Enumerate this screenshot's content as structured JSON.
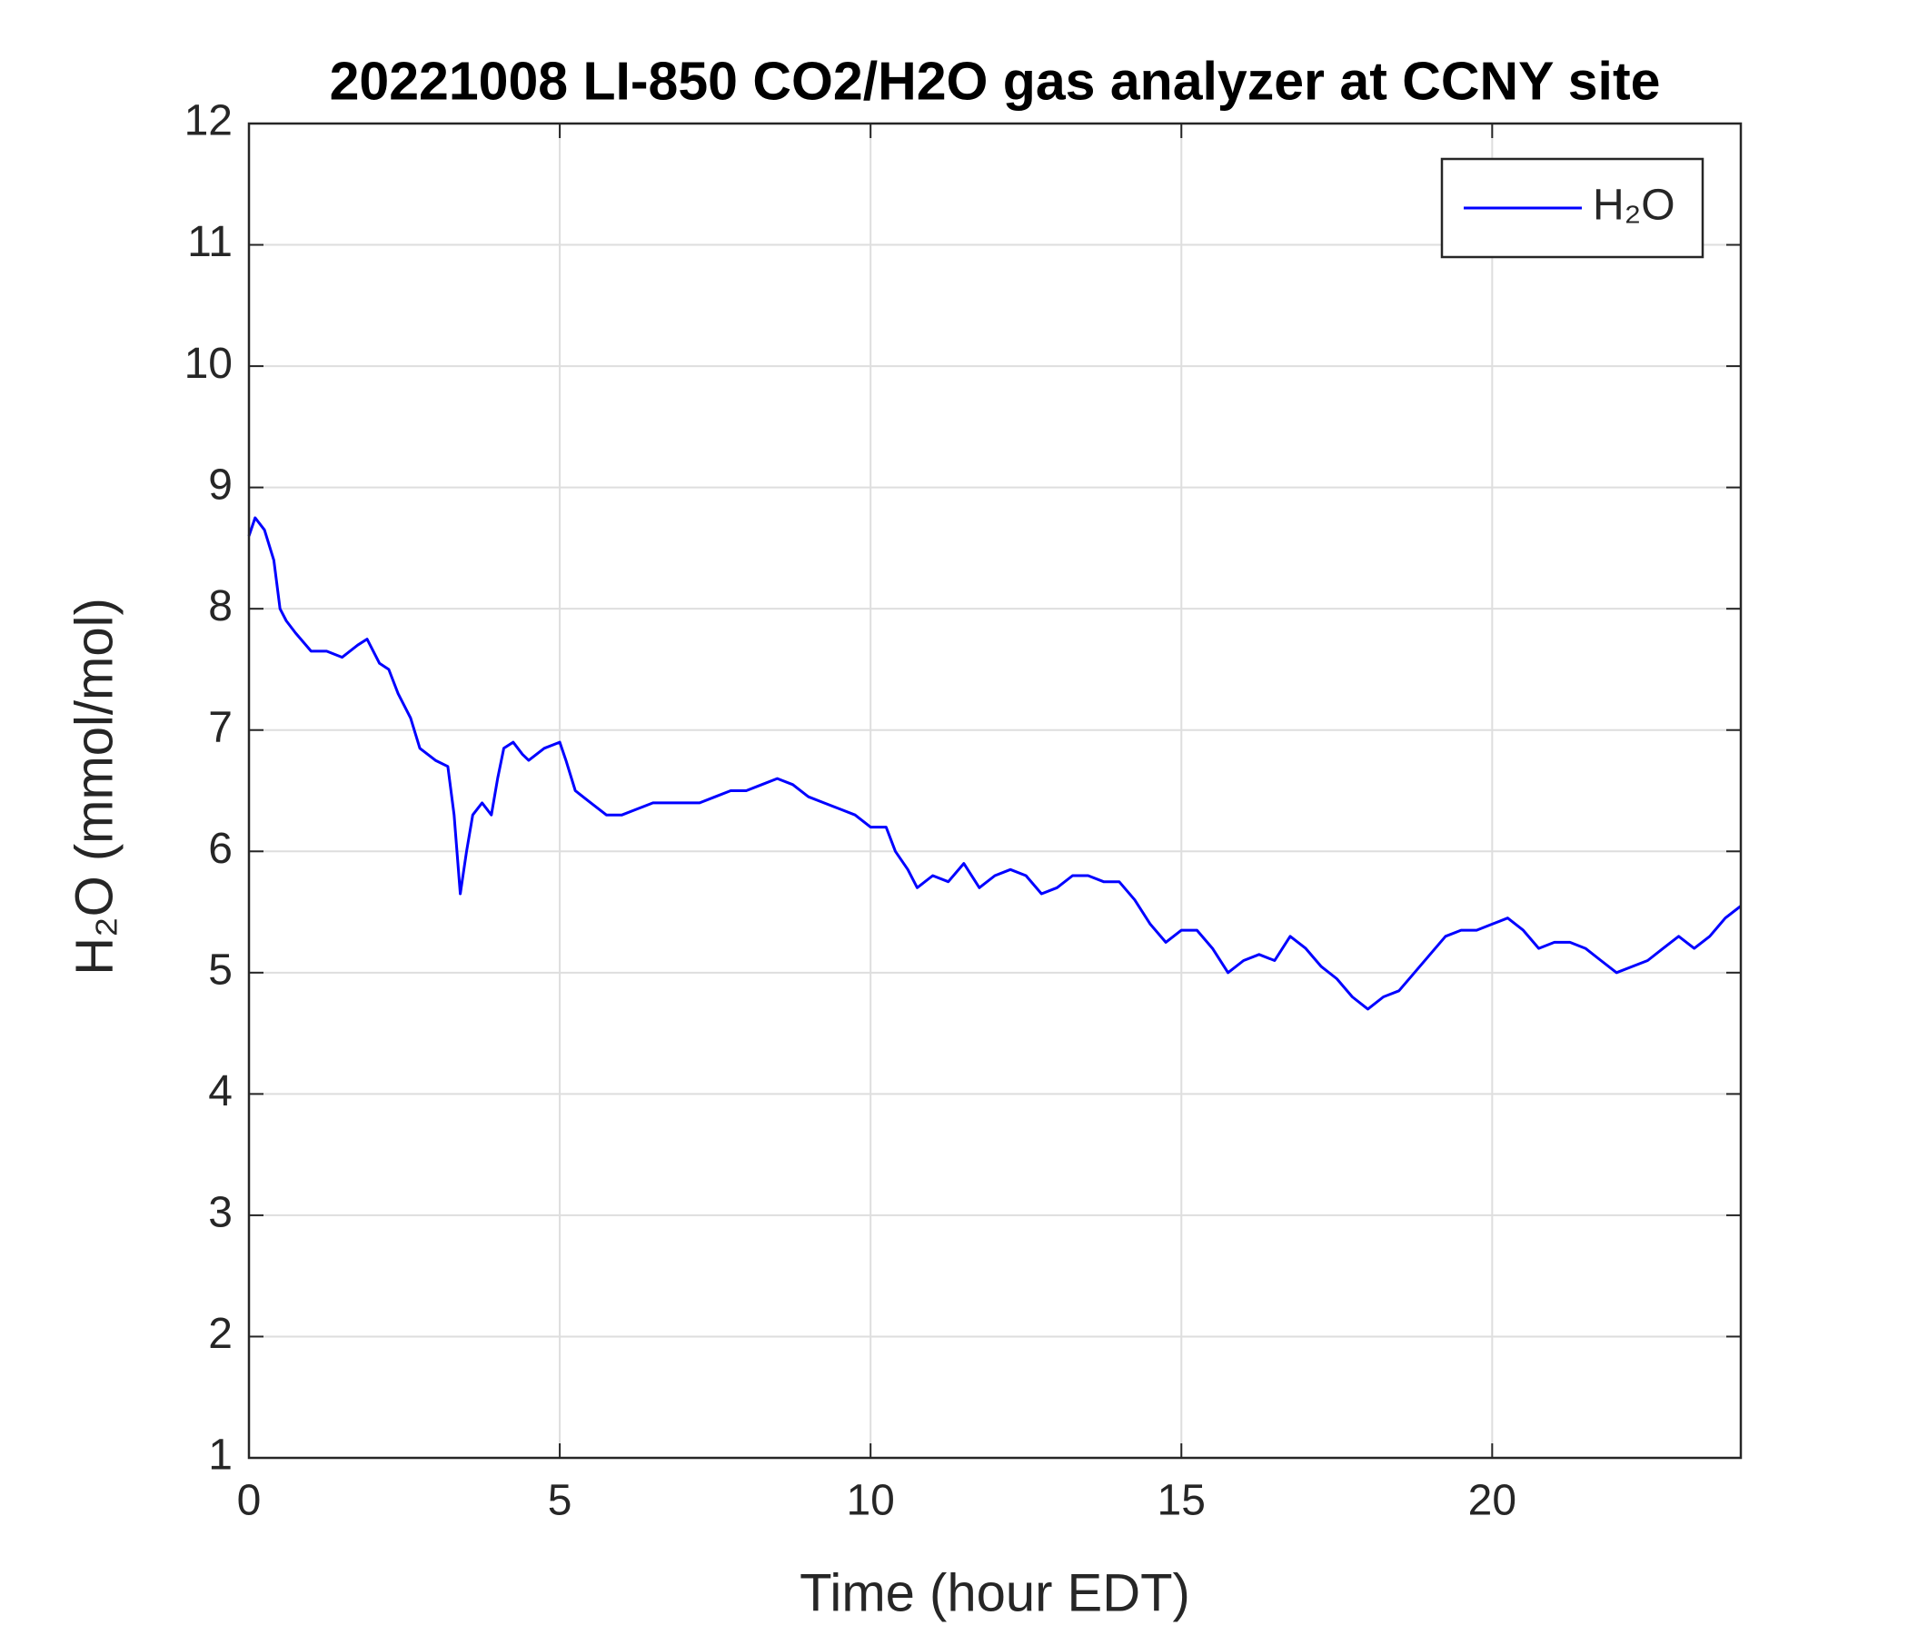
{
  "chart_data": {
    "type": "line",
    "title": "20221008 LI-850 CO2/H2O gas analyzer at CCNY site",
    "xlabel": "Time (hour EDT)",
    "ylabel": "H₂O (mmol/mol)",
    "x": [
      0,
      0.1,
      0.25,
      0.4,
      0.5,
      0.6,
      0.75,
      1,
      1.25,
      1.5,
      1.75,
      1.9,
      2.1,
      2.25,
      2.4,
      2.6,
      2.75,
      3,
      3.2,
      3.3,
      3.4,
      3.5,
      3.6,
      3.75,
      3.9,
      4,
      4.1,
      4.25,
      4.4,
      4.5,
      4.75,
      5,
      5.1,
      5.25,
      5.5,
      5.75,
      6,
      6.25,
      6.5,
      6.75,
      7,
      7.25,
      7.5,
      7.75,
      8,
      8.25,
      8.5,
      8.75,
      9,
      9.25,
      9.5,
      9.75,
      10,
      10.25,
      10.4,
      10.6,
      10.75,
      11,
      11.25,
      11.5,
      11.75,
      12,
      12.25,
      12.5,
      12.75,
      13,
      13.25,
      13.5,
      13.75,
      14,
      14.25,
      14.5,
      14.75,
      15,
      15.25,
      15.5,
      15.75,
      16,
      16.25,
      16.5,
      16.75,
      17,
      17.25,
      17.5,
      17.75,
      18,
      18.25,
      18.5,
      18.75,
      19,
      19.25,
      19.5,
      19.75,
      20,
      20.25,
      20.5,
      20.75,
      21,
      21.25,
      21.5,
      21.75,
      22,
      22.25,
      22.5,
      22.75,
      23,
      23.25,
      23.5,
      23.75,
      24
    ],
    "series": [
      {
        "name": "H₂O",
        "color": "#0000ff",
        "values": [
          8.6,
          8.75,
          8.65,
          8.4,
          8.0,
          7.9,
          7.8,
          7.65,
          7.65,
          7.6,
          7.7,
          7.75,
          7.55,
          7.5,
          7.3,
          7.1,
          6.85,
          6.75,
          6.7,
          6.3,
          5.65,
          6.0,
          6.3,
          6.4,
          6.3,
          6.6,
          6.85,
          6.9,
          6.8,
          6.75,
          6.85,
          6.9,
          6.75,
          6.5,
          6.4,
          6.3,
          6.3,
          6.35,
          6.4,
          6.4,
          6.4,
          6.4,
          6.45,
          6.5,
          6.5,
          6.55,
          6.6,
          6.55,
          6.45,
          6.4,
          6.35,
          6.3,
          6.2,
          6.2,
          6.0,
          5.85,
          5.7,
          5.8,
          5.75,
          5.9,
          5.7,
          5.8,
          5.85,
          5.8,
          5.65,
          5.7,
          5.8,
          5.8,
          5.75,
          5.75,
          5.6,
          5.4,
          5.25,
          5.35,
          5.35,
          5.2,
          5.0,
          5.1,
          5.15,
          5.1,
          5.3,
          5.2,
          5.05,
          4.95,
          4.8,
          4.7,
          4.8,
          4.85,
          5.0,
          5.15,
          5.3,
          5.35,
          5.35,
          5.4,
          5.45,
          5.35,
          5.2,
          5.25,
          5.25,
          5.2,
          5.1,
          5.0,
          5.05,
          5.1,
          5.2,
          5.3,
          5.2,
          5.3,
          5.45,
          5.55
        ]
      }
    ],
    "xlim": [
      0,
      24
    ],
    "xticks": [
      0,
      5,
      10,
      15,
      20
    ],
    "ylim": [
      1,
      12
    ],
    "yticks": [
      1,
      2,
      3,
      4,
      5,
      6,
      7,
      8,
      9,
      10,
      11,
      12
    ],
    "grid": true,
    "legend": "upper right"
  }
}
